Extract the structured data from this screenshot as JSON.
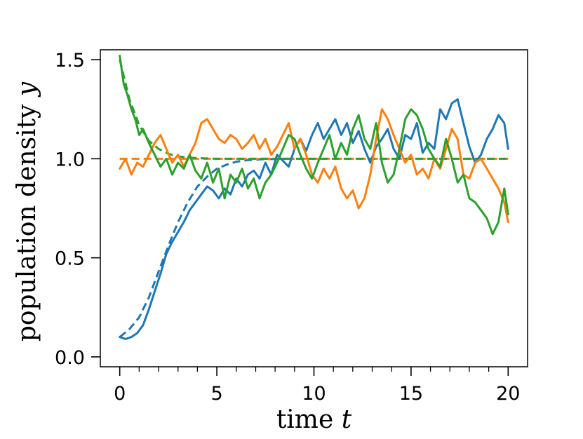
{
  "chart_data": {
    "type": "line",
    "title": "",
    "xlabel": {
      "text": "time ",
      "var": "t"
    },
    "ylabel": {
      "text": "population density ",
      "var": "y"
    },
    "xlim": [
      -1,
      21
    ],
    "ylim": [
      -0.05,
      1.55
    ],
    "xticks": [
      0,
      5,
      10,
      15,
      20
    ],
    "xtick_labels": [
      "0",
      "5",
      "10",
      "15",
      "20"
    ],
    "yticks": [
      0.0,
      0.5,
      1.0,
      1.5
    ],
    "ytick_labels": [
      "0.0",
      "0.5",
      "1.0",
      "1.5"
    ],
    "x_minor_step": 1,
    "grid": false,
    "legend": "none",
    "series": [
      {
        "color": "#1f77b4",
        "style": "solid",
        "x": [
          0,
          0.3,
          0.6,
          0.9,
          1.2,
          1.5,
          1.8,
          2.1,
          2.4,
          2.7,
          3.0,
          3.3,
          3.6,
          3.9,
          4.2,
          4.5,
          4.8,
          5.1,
          5.4,
          5.7,
          6.0,
          6.3,
          6.6,
          6.9,
          7.2,
          7.5,
          7.8,
          8.1,
          8.4,
          8.7,
          9.0,
          9.3,
          9.6,
          9.9,
          10.2,
          10.5,
          10.8,
          11.1,
          11.4,
          11.7,
          12.0,
          12.3,
          12.6,
          12.9,
          13.2,
          13.5,
          13.8,
          14.1,
          14.4,
          14.7,
          15.0,
          15.3,
          15.6,
          15.9,
          16.2,
          16.5,
          16.8,
          17.1,
          17.4,
          17.7,
          18.0,
          18.3,
          18.6,
          18.9,
          19.2,
          19.5,
          19.8,
          20.0
        ],
        "y": [
          0.1,
          0.09,
          0.1,
          0.12,
          0.16,
          0.24,
          0.33,
          0.42,
          0.52,
          0.58,
          0.63,
          0.68,
          0.74,
          0.78,
          0.82,
          0.86,
          0.84,
          0.8,
          0.85,
          0.82,
          0.9,
          0.86,
          0.92,
          0.94,
          0.9,
          0.98,
          0.92,
          1.02,
          0.99,
          0.96,
          1.05,
          1.1,
          1.04,
          1.12,
          1.18,
          1.1,
          1.15,
          1.2,
          1.12,
          1.18,
          1.08,
          1.14,
          1.05,
          0.98,
          1.06,
          1.1,
          1.15,
          1.05,
          1.0,
          1.12,
          1.1,
          1.18,
          1.03,
          1.08,
          1.05,
          1.25,
          1.2,
          1.28,
          1.3,
          1.18,
          1.06,
          0.98,
          1.02,
          1.1,
          1.15,
          1.22,
          1.18,
          1.05
        ]
      },
      {
        "color": "#ff7f0e",
        "style": "solid",
        "x": [
          0,
          0.3,
          0.6,
          0.9,
          1.2,
          1.5,
          1.8,
          2.1,
          2.4,
          2.7,
          3.0,
          3.3,
          3.6,
          3.9,
          4.2,
          4.5,
          4.8,
          5.1,
          5.4,
          5.7,
          6.0,
          6.3,
          6.6,
          6.9,
          7.2,
          7.5,
          7.8,
          8.1,
          8.4,
          8.7,
          9.0,
          9.3,
          9.6,
          9.9,
          10.2,
          10.5,
          10.8,
          11.1,
          11.4,
          11.7,
          12.0,
          12.3,
          12.6,
          12.9,
          13.2,
          13.5,
          13.8,
          14.1,
          14.4,
          14.7,
          15.0,
          15.3,
          15.6,
          15.9,
          16.2,
          16.5,
          16.8,
          17.1,
          17.4,
          17.7,
          18.0,
          18.3,
          18.6,
          18.9,
          19.2,
          19.5,
          19.8,
          20.0
        ],
        "y": [
          0.95,
          1.0,
          0.92,
          0.98,
          0.96,
          1.02,
          1.08,
          1.12,
          1.05,
          0.98,
          1.02,
          0.96,
          1.02,
          1.08,
          1.18,
          1.2,
          1.15,
          1.1,
          1.08,
          1.12,
          1.1,
          1.05,
          1.08,
          1.12,
          1.05,
          1.1,
          1.02,
          1.06,
          1.12,
          1.18,
          1.05,
          1.1,
          1.02,
          0.92,
          0.88,
          0.95,
          0.9,
          0.96,
          0.85,
          0.8,
          0.84,
          0.75,
          0.8,
          0.92,
          1.1,
          1.25,
          1.2,
          1.12,
          1.05,
          0.98,
          1.02,
          0.92,
          0.95,
          0.9,
          1.0,
          0.95,
          1.05,
          1.15,
          1.1,
          0.92,
          0.9,
          0.98,
          1.0,
          0.95,
          0.9,
          0.85,
          0.78,
          0.68
        ]
      },
      {
        "color": "#2ca02c",
        "style": "solid",
        "x": [
          0,
          0.2,
          0.4,
          0.6,
          0.8,
          1.0,
          1.2,
          1.5,
          1.8,
          2.1,
          2.4,
          2.7,
          3.0,
          3.3,
          3.6,
          3.9,
          4.2,
          4.5,
          4.8,
          5.1,
          5.4,
          5.7,
          6.0,
          6.3,
          6.6,
          6.9,
          7.2,
          7.5,
          7.8,
          8.1,
          8.4,
          8.7,
          9.0,
          9.3,
          9.6,
          9.9,
          10.2,
          10.5,
          10.8,
          11.1,
          11.4,
          11.7,
          12.0,
          12.3,
          12.6,
          12.9,
          13.2,
          13.5,
          13.8,
          14.1,
          14.4,
          14.7,
          15.0,
          15.3,
          15.6,
          15.9,
          16.2,
          16.5,
          16.8,
          17.1,
          17.4,
          17.7,
          18.0,
          18.3,
          18.6,
          18.9,
          19.2,
          19.5,
          19.8,
          20.0
        ],
        "y": [
          1.52,
          1.38,
          1.32,
          1.25,
          1.2,
          1.12,
          1.15,
          1.08,
          1.02,
          0.96,
          1.0,
          0.92,
          0.98,
          0.95,
          1.02,
          0.94,
          0.9,
          0.98,
          0.88,
          0.95,
          0.8,
          0.92,
          0.88,
          0.95,
          0.85,
          0.9,
          0.8,
          0.88,
          0.92,
          0.98,
          1.05,
          1.12,
          1.1,
          1.02,
          0.95,
          0.9,
          0.98,
          1.05,
          1.12,
          1.0,
          1.08,
          1.02,
          1.15,
          1.22,
          1.1,
          1.05,
          1.18,
          0.98,
          0.88,
          0.92,
          1.05,
          1.2,
          1.25,
          1.22,
          1.15,
          1.05,
          1.0,
          0.96,
          1.1,
          1.0,
          0.88,
          0.92,
          0.8,
          0.78,
          0.74,
          0.7,
          0.62,
          0.68,
          0.85,
          0.72
        ]
      },
      {
        "color": "#1f77b4",
        "style": "dashed",
        "x": [
          0,
          0.5,
          1.0,
          1.5,
          2.0,
          2.5,
          3.0,
          3.5,
          4.0,
          4.5,
          5.0,
          5.5,
          6.0,
          6.5,
          7.0,
          7.5,
          8.0,
          8.5,
          9.0
        ],
        "y": [
          0.1,
          0.14,
          0.2,
          0.3,
          0.43,
          0.56,
          0.68,
          0.78,
          0.86,
          0.91,
          0.95,
          0.97,
          0.985,
          0.992,
          0.996,
          0.998,
          0.999,
          1.0,
          1.0
        ]
      },
      {
        "color": "#ff7f0e",
        "style": "dashed",
        "x": [
          0,
          20
        ],
        "y": [
          1.0,
          1.0
        ]
      },
      {
        "color": "#2ca02c",
        "style": "dashed",
        "x": [
          0,
          0.5,
          1.0,
          1.5,
          2.0,
          2.5,
          3.0,
          3.5,
          4.0,
          5.0,
          20.0
        ],
        "y": [
          1.5,
          1.3,
          1.17,
          1.09,
          1.05,
          1.025,
          1.012,
          1.006,
          1.003,
          1.0,
          1.0
        ]
      }
    ]
  }
}
